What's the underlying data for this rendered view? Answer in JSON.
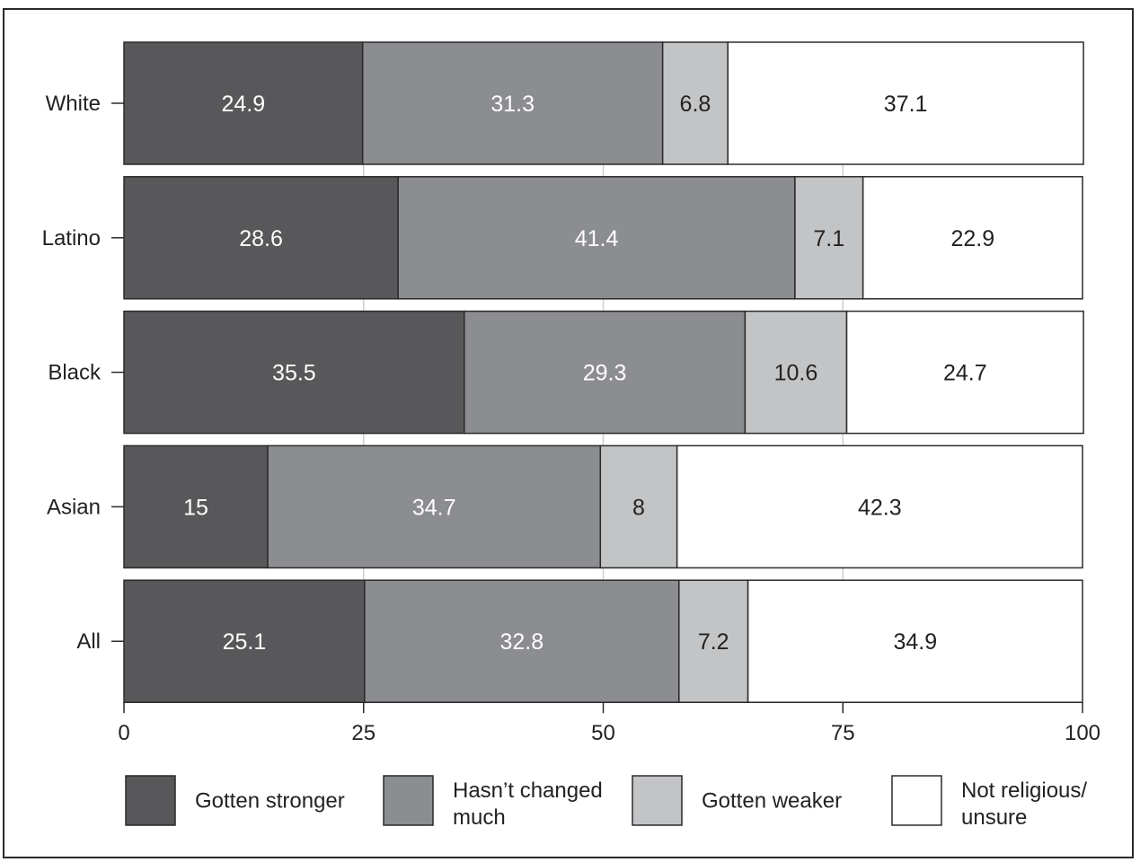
{
  "chart_data": {
    "type": "bar",
    "orientation": "horizontal",
    "stacked": true,
    "categories": [
      "White",
      "Latino",
      "Black",
      "Asian",
      "All"
    ],
    "series": [
      {
        "name": "Gotten stronger",
        "values": [
          24.9,
          28.6,
          35.5,
          15,
          25.1
        ],
        "color": "#58585a",
        "label_color": "#ffffff"
      },
      {
        "name": "Hasn’t changed much",
        "values": [
          31.3,
          41.4,
          29.3,
          34.7,
          32.8
        ],
        "color": "#8c8d90",
        "label_color": "#ffffff"
      },
      {
        "name": "Gotten weaker",
        "values": [
          6.8,
          7.1,
          10.6,
          8,
          7.2
        ],
        "color": "#c3c4c6",
        "label_color": "#222222"
      },
      {
        "name": "Not religious/ unsure",
        "values": [
          37.1,
          22.9,
          24.7,
          42.3,
          34.9
        ],
        "color": "#ffffff",
        "label_color": "#222222"
      }
    ],
    "xlim": [
      0,
      100
    ],
    "xticks": [
      0,
      25,
      50,
      75,
      100
    ],
    "grid": true,
    "legend_position": "bottom"
  }
}
